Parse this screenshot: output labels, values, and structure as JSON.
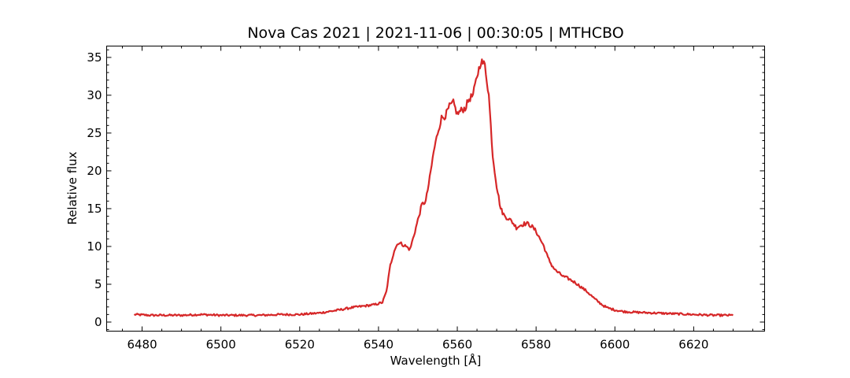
{
  "chart_data": {
    "type": "line",
    "title": "Nova Cas 2021 | 2021-11-06 | 00:30:05 | MTHCBO",
    "xlabel": "Wavelength [Å]",
    "ylabel": "Relative flux",
    "xlim": [
      6471,
      6638
    ],
    "ylim": [
      -1.2,
      36.5
    ],
    "xticks": [
      6480,
      6500,
      6520,
      6540,
      6560,
      6580,
      6600,
      6620
    ],
    "yticks": [
      0,
      5,
      10,
      15,
      20,
      25,
      30,
      35
    ],
    "xtick_labels": [
      "6480",
      "6500",
      "6520",
      "6540",
      "6560",
      "6580",
      "6600",
      "6620"
    ],
    "ytick_labels": [
      "0",
      "5",
      "10",
      "15",
      "20",
      "25",
      "30",
      "35"
    ],
    "grid": false,
    "legend": "none",
    "colors": {
      "series": "#d62728",
      "axes": "#000000"
    },
    "series": [
      {
        "x": [
          6478,
          6482,
          6486,
          6490,
          6495,
          6500,
          6505,
          6510,
          6515,
          6520,
          6525,
          6530,
          6533,
          6536,
          6539,
          6541,
          6542,
          6543,
          6544,
          6545,
          6546,
          6547,
          6548,
          6549,
          6550,
          6551,
          6552,
          6553,
          6554,
          6555,
          6556,
          6557,
          6558,
          6559,
          6560,
          6561,
          6562,
          6563,
          6564,
          6565,
          6566,
          6567,
          6568,
          6569,
          6570,
          6571,
          6572,
          6573,
          6574,
          6575,
          6576,
          6577,
          6578,
          6579,
          6580,
          6581,
          6582,
          6583,
          6584,
          6585,
          6586,
          6587,
          6588,
          6589,
          6590,
          6591,
          6592,
          6593,
          6594,
          6595,
          6596,
          6597,
          6598,
          6600,
          6602,
          6605,
          6610,
          6615,
          6620,
          6625,
          6630
        ],
        "y": [
          1.0,
          0.9,
          0.9,
          0.9,
          1.0,
          0.9,
          0.9,
          0.9,
          1.0,
          1.0,
          1.2,
          1.6,
          1.9,
          2.1,
          2.3,
          2.6,
          4.0,
          7.5,
          9.5,
          10.5,
          10.3,
          10.0,
          9.6,
          11.5,
          13.5,
          15.5,
          16.0,
          19.0,
          22.5,
          25.0,
          27.0,
          27.3,
          28.5,
          29.0,
          27.5,
          28.0,
          28.3,
          29.5,
          30.0,
          32.5,
          34.5,
          34.0,
          30.0,
          22.0,
          18.0,
          15.0,
          14.0,
          13.7,
          13.2,
          12.5,
          12.8,
          13.0,
          13.0,
          12.6,
          12.0,
          11.0,
          10.0,
          8.5,
          7.5,
          6.8,
          6.4,
          6.0,
          5.8,
          5.5,
          5.2,
          4.8,
          4.4,
          4.0,
          3.5,
          3.0,
          2.6,
          2.2,
          1.9,
          1.6,
          1.4,
          1.3,
          1.2,
          1.1,
          1.0,
          0.9,
          0.9
        ]
      }
    ]
  }
}
